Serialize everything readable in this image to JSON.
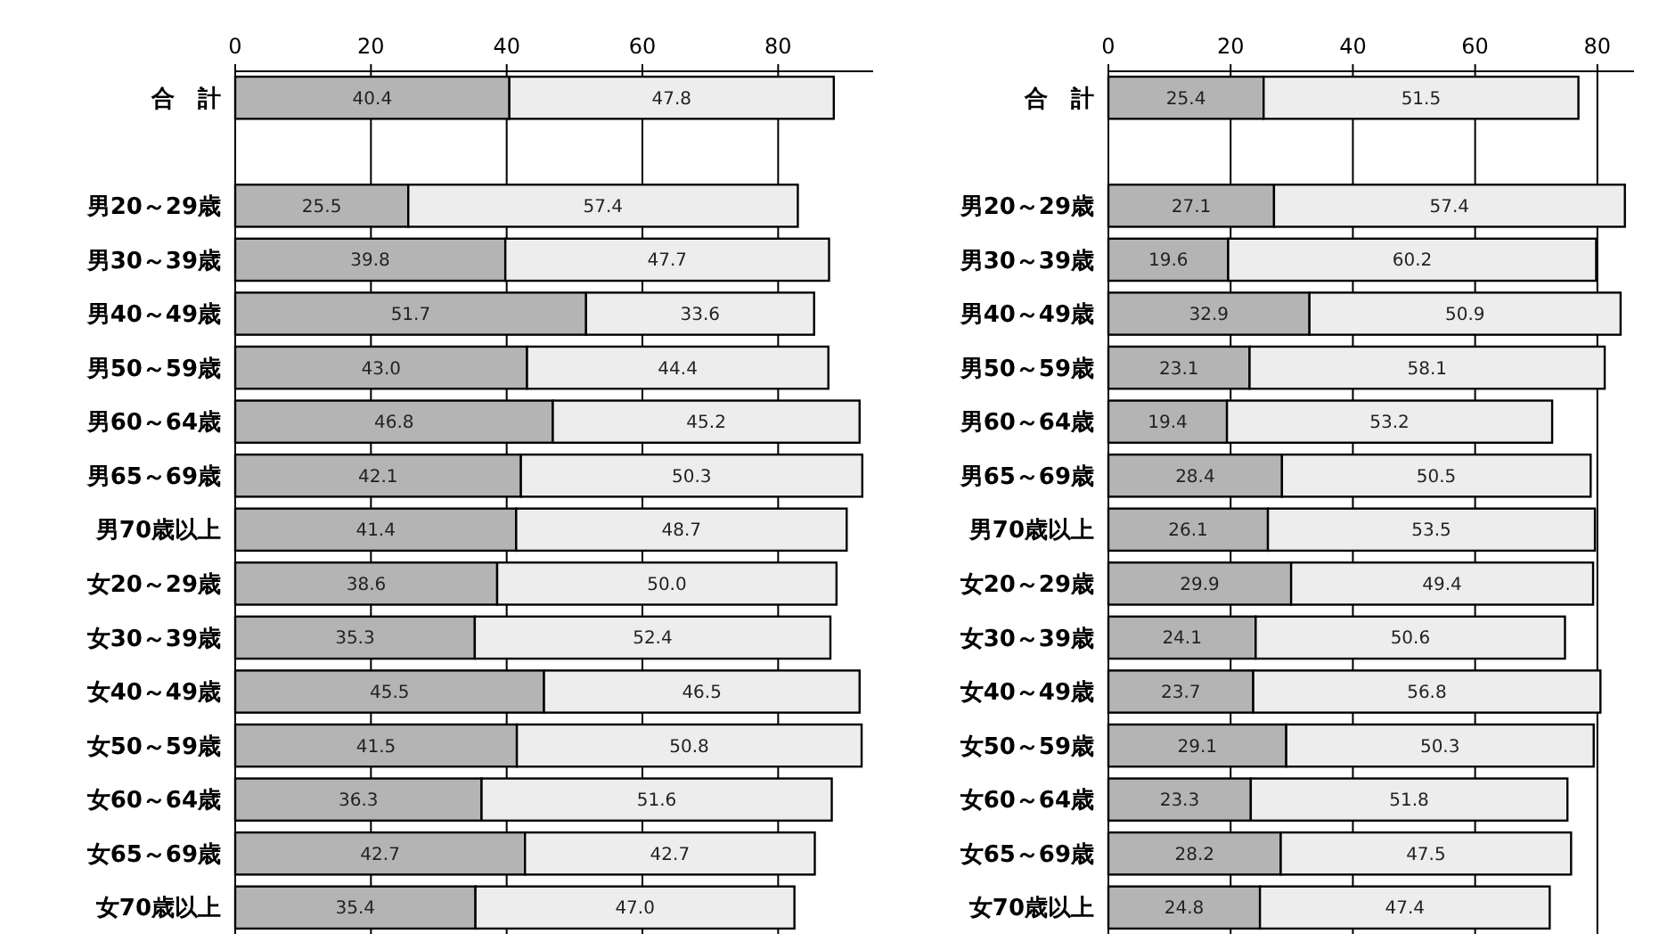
{
  "chart_data": [
    {
      "type": "bar",
      "orientation": "horizontal",
      "stacked": true,
      "categories": [
        "合　計",
        null,
        "男20～29歳",
        "男30～39歳",
        "男40～49歳",
        "男50～59歳",
        "男60～64歳",
        "男65～69歳",
        "男70歳以上",
        "女20～29歳",
        "女30～39歳",
        "女40～49歳",
        "女50～59歳",
        "女60～64歳",
        "女65～69歳",
        "女70歳以上"
      ],
      "series": [
        {
          "color": "#b4b4b4",
          "values": [
            40.4,
            null,
            25.5,
            39.8,
            51.7,
            43.0,
            46.8,
            42.1,
            41.4,
            38.6,
            35.3,
            45.5,
            41.5,
            36.3,
            42.7,
            35.4
          ],
          "value_labels": [
            "40.4",
            null,
            "25.5",
            "39.8",
            "51.7",
            "43.0",
            "46.8",
            "42.1",
            "41.4",
            "38.6",
            "35.3",
            "45.5",
            "41.5",
            "36.3",
            "42.7",
            "35.4"
          ]
        },
        {
          "color": "#ededed",
          "values": [
            47.8,
            null,
            57.4,
            47.7,
            33.6,
            44.4,
            45.2,
            50.3,
            48.7,
            50.0,
            52.4,
            46.5,
            50.8,
            51.6,
            42.7,
            47.0
          ],
          "value_labels": [
            "47.8",
            null,
            "57.4",
            "47.7",
            "33.6",
            "44.4",
            "45.2",
            "50.3",
            "48.7",
            "50.0",
            "52.4",
            "46.5",
            "50.8",
            "51.6",
            "42.7",
            "47.0"
          ]
        }
      ],
      "xlim": [
        0,
        94
      ],
      "xticks": [
        0,
        20,
        40,
        60,
        80
      ],
      "grid": "x"
    },
    {
      "type": "bar",
      "orientation": "horizontal",
      "stacked": true,
      "categories": [
        "合　計",
        null,
        "男20～29歳",
        "男30～39歳",
        "男40～49歳",
        "男50～59歳",
        "男60～64歳",
        "男65～69歳",
        "男70歳以上",
        "女20～29歳",
        "女30～39歳",
        "女40～49歳",
        "女50～59歳",
        "女60～64歳",
        "女65～69歳",
        "女70歳以上"
      ],
      "series": [
        {
          "color": "#b4b4b4",
          "values": [
            25.4,
            null,
            27.1,
            19.6,
            32.9,
            23.1,
            19.4,
            28.4,
            26.1,
            29.9,
            24.1,
            23.7,
            29.1,
            23.3,
            28.2,
            24.8
          ]
        },
        {
          "color": "#ededed",
          "values": [
            51.5,
            null,
            57.4,
            60.2,
            50.9,
            58.1,
            53.2,
            50.5,
            53.5,
            49.4,
            50.6,
            56.8,
            50.3,
            51.8,
            47.5,
            47.4
          ]
        }
      ],
      "xlim": [
        0,
        86
      ],
      "xticks": [
        0,
        20,
        40,
        60,
        80
      ],
      "grid": "x",
      "data_labels": true
    }
  ]
}
